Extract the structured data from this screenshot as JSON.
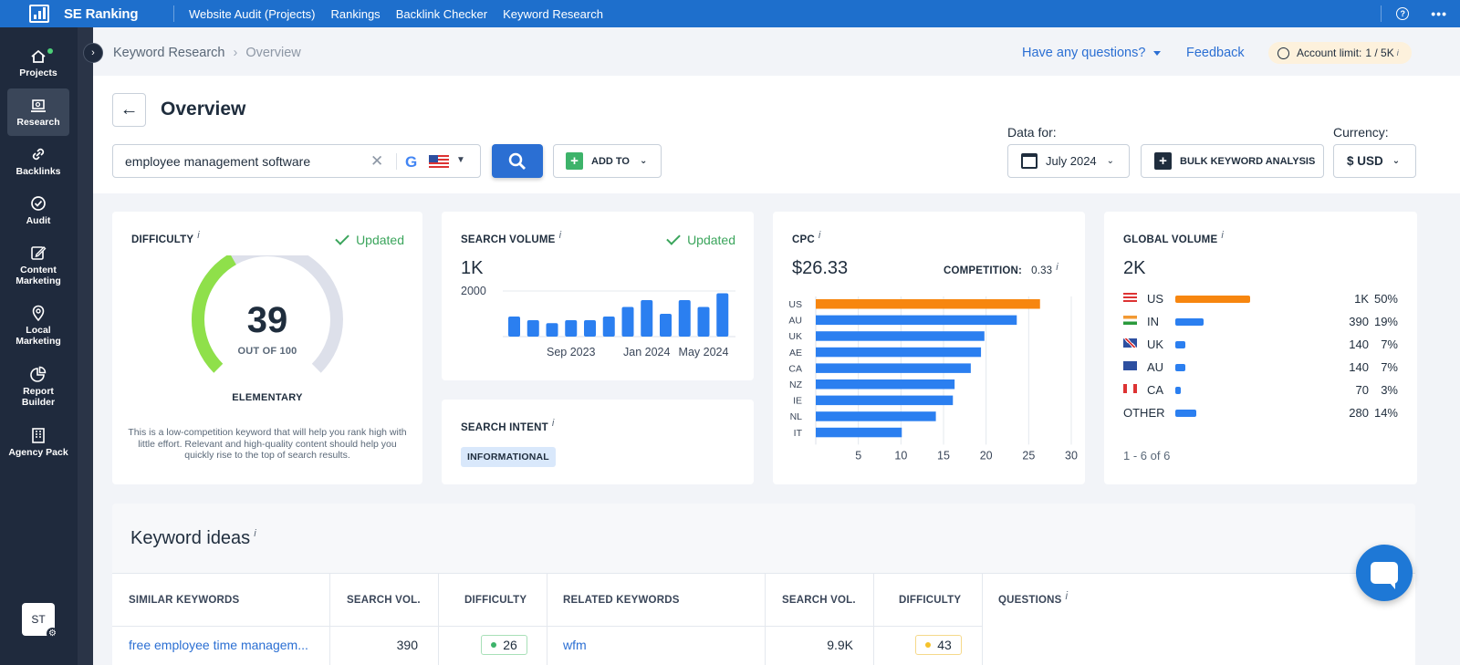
{
  "app": {
    "name": "SE Ranking"
  },
  "topnav": [
    "Website Audit (Projects)",
    "Rankings",
    "Backlink Checker",
    "Keyword Research"
  ],
  "sidebar": {
    "items": [
      {
        "label": "Projects",
        "icon": "home-icon"
      },
      {
        "label": "Research",
        "icon": "research-icon",
        "active": true
      },
      {
        "label": "Backlinks",
        "icon": "link-icon"
      },
      {
        "label": "Audit",
        "icon": "check-circle-icon"
      },
      {
        "label": "Content Marketing",
        "icon": "edit-icon"
      },
      {
        "label": "Local Marketing",
        "icon": "map-pin-icon"
      },
      {
        "label": "Report Builder",
        "icon": "pie-chart-icon"
      },
      {
        "label": "Agency Pack",
        "icon": "building-icon"
      }
    ],
    "user_initials": "ST"
  },
  "breadcrumb": {
    "parent": "Keyword Research",
    "current": "Overview"
  },
  "header_links": {
    "questions": "Have any questions?",
    "feedback": "Feedback",
    "account_label": "Account limit:",
    "account_value": "1 / 5K",
    "account_info": "i"
  },
  "page": {
    "title": "Overview"
  },
  "search": {
    "value": "employee management software",
    "engine": "G",
    "country": "US"
  },
  "buttons": {
    "add_to": "ADD TO",
    "bulk": "BULK KEYWORD ANALYSIS"
  },
  "data_for": {
    "label": "Data for:",
    "value": "July 2024"
  },
  "currency": {
    "label": "Currency:",
    "value": "$ USD"
  },
  "difficulty": {
    "title": "DIFFICULTY",
    "info": "i",
    "status": "Updated",
    "value": 39,
    "max": 100,
    "sub": "OUT OF 100",
    "level": "ELEMENTARY",
    "description": "This is a low-competition keyword that will help you rank high with little effort. Relevant and high-quality content should help you quickly rise to the top of search results.",
    "colors": {
      "fill": "#8fe04a",
      "track": "#dde0ea"
    }
  },
  "search_volume": {
    "title": "SEARCH VOLUME",
    "info": "i",
    "status": "Updated",
    "value": "1K",
    "chart_data": {
      "type": "bar",
      "categories": [
        "",
        "",
        "",
        "",
        "",
        "",
        "",
        "",
        "",
        "",
        "",
        ""
      ],
      "values": [
        880,
        720,
        590,
        720,
        720,
        880,
        1300,
        1600,
        1000,
        1600,
        1300,
        1900
      ],
      "ylim": [
        0,
        2000
      ],
      "yticks": [
        "2000"
      ],
      "xtick_labels": [
        "Sep 2023",
        "Jan 2024",
        "May 2024"
      ],
      "xtick_index": [
        3,
        7,
        10
      ],
      "bar_color": "#2b7ff0"
    }
  },
  "search_intent": {
    "title": "SEARCH INTENT",
    "info": "i",
    "badge": "INFORMATIONAL"
  },
  "cpc": {
    "title": "CPC",
    "info": "i",
    "value": "$26.33",
    "competition_label": "COMPETITION:",
    "competition_value": "0.33",
    "chart_data": {
      "type": "bar",
      "orientation": "horizontal",
      "categories": [
        "US",
        "AU",
        "UK",
        "AE",
        "CA",
        "NZ",
        "IE",
        "NL",
        "IT"
      ],
      "values": [
        26.33,
        23.6,
        19.8,
        19.4,
        18.2,
        16.3,
        16.1,
        14.1,
        10.1
      ],
      "xlim": [
        0,
        30
      ],
      "xticks": [
        5,
        10,
        15,
        20,
        25,
        30
      ],
      "colors": {
        "highlight": "#f7860f",
        "default": "#2b7ff0"
      }
    }
  },
  "global_volume": {
    "title": "GLOBAL VOLUME",
    "info": "i",
    "value": "2K",
    "rows": [
      {
        "code": "US",
        "volume": "1K",
        "pct": "50%",
        "share": 0.5,
        "color": "#f7860f",
        "flag": "us"
      },
      {
        "code": "IN",
        "volume": "390",
        "pct": "19%",
        "share": 0.19,
        "color": "#2b7ff0",
        "flag": "in"
      },
      {
        "code": "UK",
        "volume": "140",
        "pct": "7%",
        "share": 0.07,
        "color": "#2b7ff0",
        "flag": "uk"
      },
      {
        "code": "AU",
        "volume": "140",
        "pct": "7%",
        "share": 0.07,
        "color": "#2b7ff0",
        "flag": "au"
      },
      {
        "code": "CA",
        "volume": "70",
        "pct": "3%",
        "share": 0.03,
        "color": "#2b7ff0",
        "flag": "ca"
      },
      {
        "code": "OTHER",
        "volume": "280",
        "pct": "14%",
        "share": 0.14,
        "color": "#2b7ff0",
        "flag": ""
      }
    ],
    "pagination": "1 - 6 of 6"
  },
  "keyword_ideas": {
    "title": "Keyword ideas",
    "info": "i",
    "columns": {
      "similar": "SIMILAR KEYWORDS",
      "vol1": "SEARCH VOL.",
      "diff1": "DIFFICULTY",
      "related": "RELATED KEYWORDS",
      "vol2": "SEARCH VOL.",
      "diff2": "DIFFICULTY",
      "questions": "QUESTIONS"
    },
    "similar_row": {
      "keyword": "free employee time managem...",
      "volume": "390",
      "difficulty": "26",
      "dot": "#3db36a",
      "border": "#a8e0b8"
    },
    "related_row": {
      "keyword": "wfm",
      "volume": "9.9K",
      "difficulty": "43",
      "dot": "#f5c22b",
      "border": "#f5d98a"
    }
  }
}
